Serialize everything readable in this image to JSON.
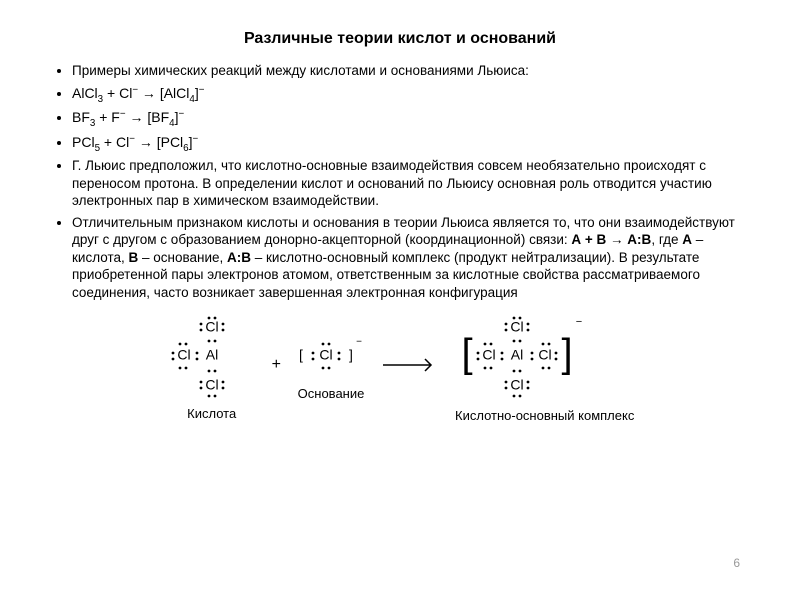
{
  "title": "Различные теории кислот и оснований",
  "bullets": {
    "intro": "Примеры химических реакций между кислотами и основаниями Льюиса:",
    "eq1": "AlCl<sub>3</sub> + Cl<sup>−</sup> → [AlCl<sub>4</sub>]<sup>−</sup>",
    "eq2": "BF<sub>3</sub> + F<sup>−</sup> → [BF<sub>4</sub>]<sup>−</sup>",
    "eq3": "PCl<sub>5</sub> + Cl<sup>−</sup> → [PCl<sub>6</sub>]<sup>−</sup>",
    "para1": "Г. Льюис предположил, что кислотно-основные взаимодействия совсем необязательно происходят с переносом протона. В определении кислот и оснований по Льюису основная роль отводится участию электронных пар в химическом взаимодействии.",
    "para2": "Отличительным признаком кислоты и основания в теории Льюиса является то, что они взаимодействуют друг с другом с образованием донорно-акцепторной (координационной) связи: <b>А + В → А:В</b>, где <b>А</b> – кислота, <b>В</b> – основание, <b>А:В</b> – кислотно-основный комплекс (продукт нейтрализации). В результате приобретенной пары электронов атомом, ответственным за кислотные свойства рассматриваемого соединения, часто возникает завершенная электронная конфигурация"
  },
  "diagram": {
    "acid_label": "Кислота",
    "base_label": "Основание",
    "complex_label": "Кислотно-основный комплекс",
    "minus": "−",
    "arrow_color": "#000000",
    "text_color": "#000000",
    "font_family": "Arial",
    "dot_radius": 1.4,
    "acid_atoms": {
      "center": "Al",
      "top": "Cl",
      "bottom": "Cl",
      "left": "Cl"
    },
    "base_atoms": {
      "center": "Cl"
    },
    "complex_atoms": {
      "center": "Al",
      "top": "Cl",
      "bottom": "Cl",
      "left": "Cl",
      "right": "Cl"
    }
  },
  "page_number": "6",
  "colors": {
    "background": "#ffffff",
    "text": "#000000",
    "page_number": "#999999"
  },
  "typography": {
    "title_fontsize": 16,
    "body_fontsize": 13.5,
    "caption_fontsize": 13
  }
}
